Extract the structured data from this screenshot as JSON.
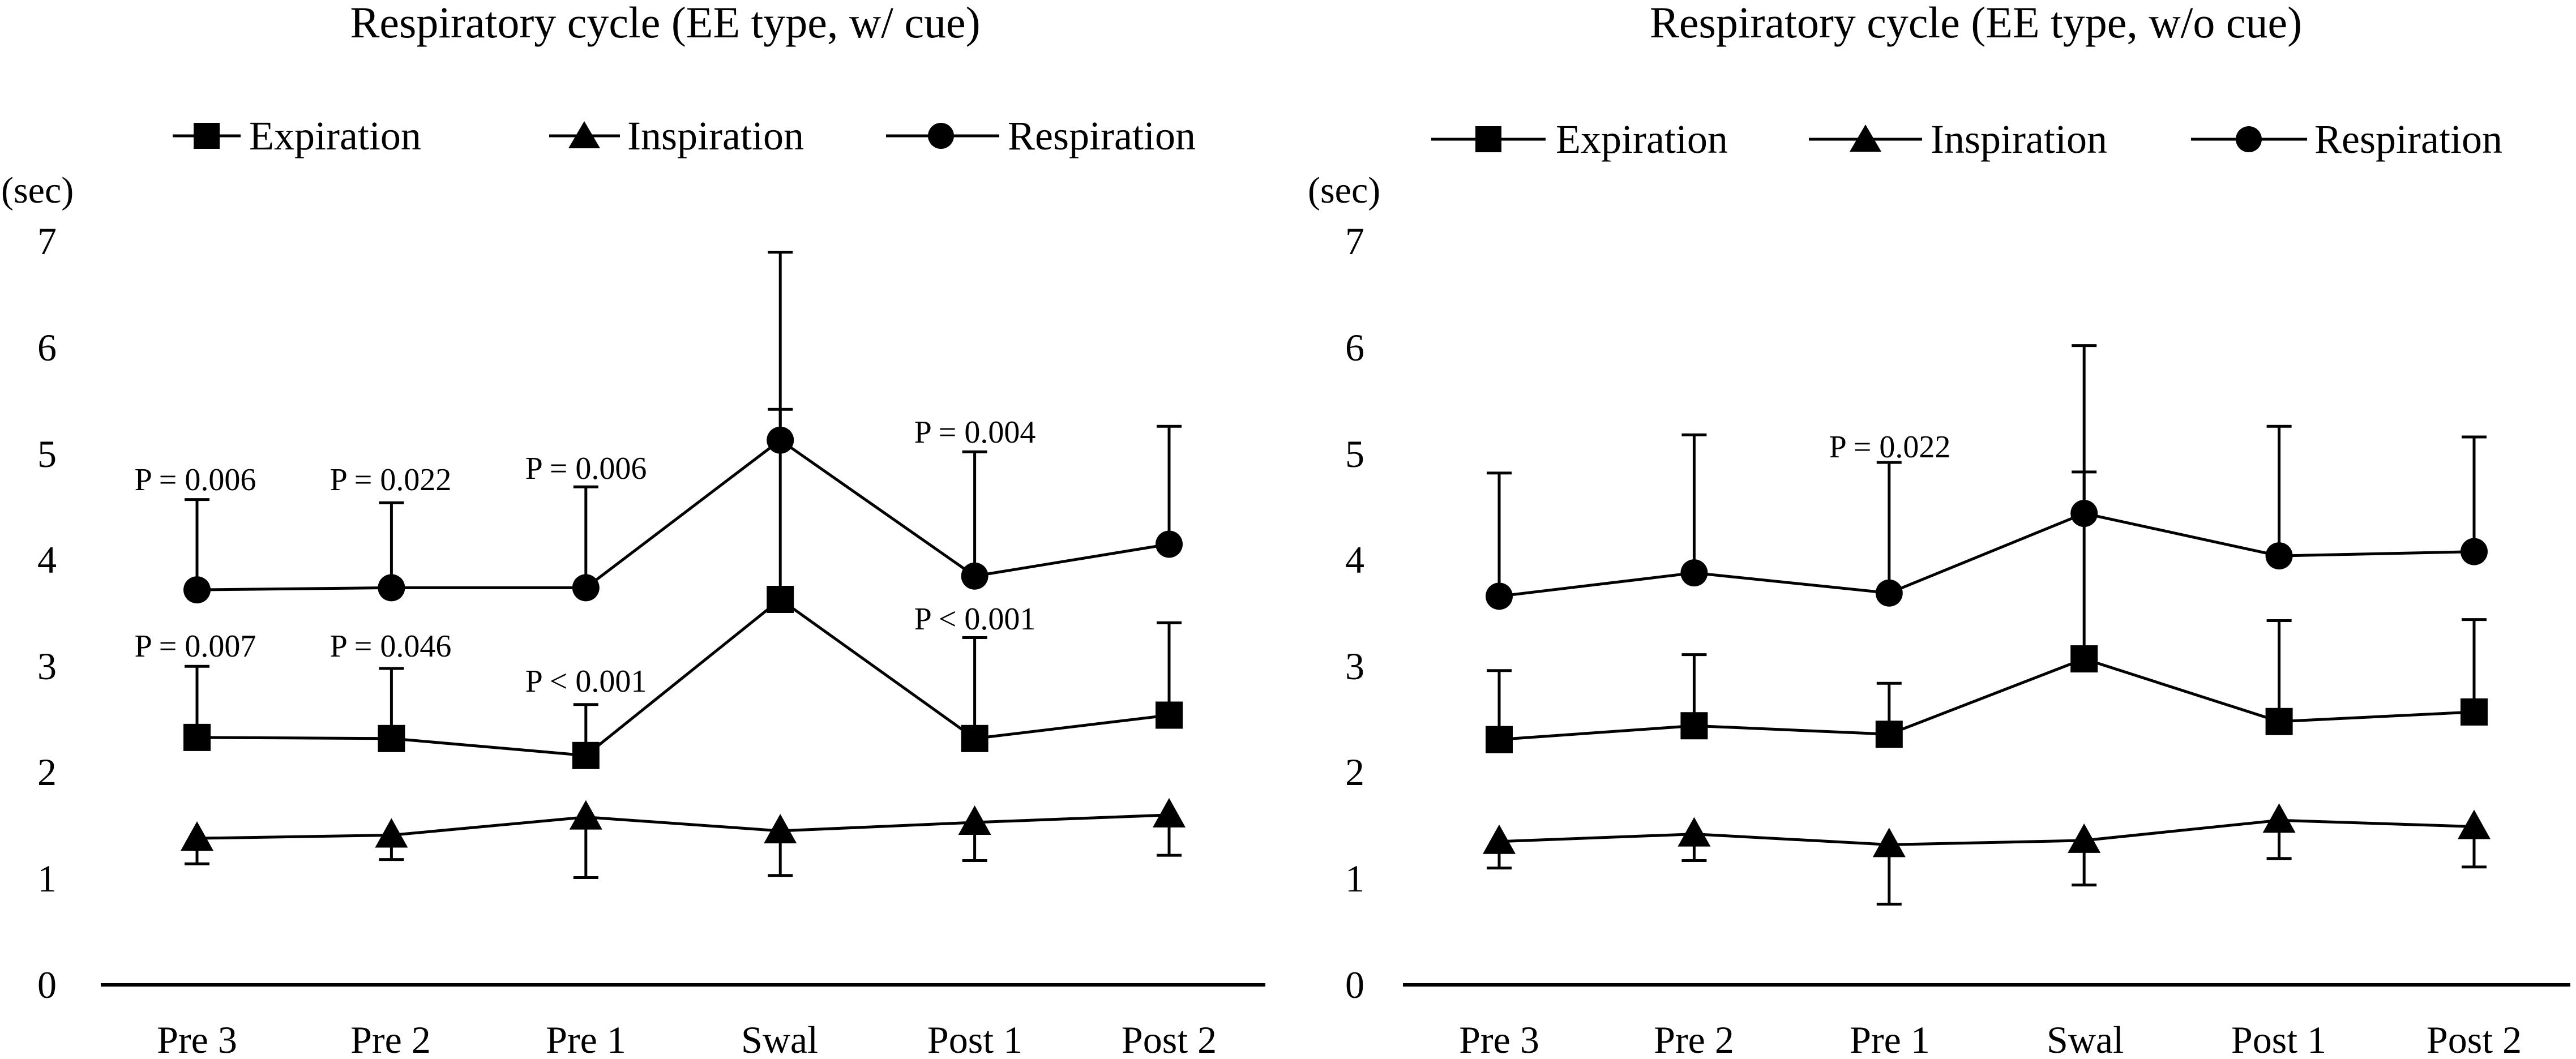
{
  "chart_data": [
    {
      "type": "line",
      "title": "Respiratory cycle (EE type, w/ cue)",
      "ylabel": "(sec)",
      "xlabel": "",
      "ylim": [
        0,
        7
      ],
      "yticks": [
        "0",
        "1",
        "2",
        "3",
        "4",
        "5",
        "6",
        "7"
      ],
      "categories": [
        "Pre 3",
        "Pre 2",
        "Pre 1",
        "Swal",
        "Post 1",
        "Post 2"
      ],
      "series": [
        {
          "name": "Expiration",
          "marker": "square",
          "values": [
            2.33,
            2.32,
            2.16,
            3.63,
            2.32,
            2.54
          ],
          "err_up": [
            3.0,
            2.98,
            2.64,
            5.42,
            3.27,
            3.41
          ],
          "err_down": [
            null,
            null,
            null,
            null,
            null,
            null
          ]
        },
        {
          "name": "Inspiration",
          "marker": "triangle",
          "values": [
            1.38,
            1.41,
            1.58,
            1.45,
            1.53,
            1.6
          ],
          "err_up": [
            null,
            null,
            null,
            null,
            null,
            null
          ],
          "err_down": [
            1.14,
            1.18,
            1.01,
            1.03,
            1.17,
            1.22
          ]
        },
        {
          "name": "Respiration",
          "marker": "circle",
          "values": [
            3.72,
            3.74,
            3.74,
            5.13,
            3.85,
            4.15
          ],
          "err_up": [
            4.57,
            4.54,
            4.69,
            6.9,
            5.02,
            5.26
          ],
          "err_down": [
            null,
            null,
            null,
            null,
            null,
            null
          ]
        }
      ],
      "annotations": [
        {
          "text": "P = 0.006",
          "category": "Pre 3",
          "y": 4.6
        },
        {
          "text": "P = 0.022",
          "category": "Pre 2",
          "y": 4.58
        },
        {
          "text": "P = 0.006",
          "category": "Pre 1",
          "y": 4.72
        },
        {
          "text": "P = 0.004",
          "category": "Post 1",
          "y": 5.05
        },
        {
          "text": "P = 0.007",
          "category": "Pre 3",
          "y": 3.02
        },
        {
          "text": "P = 0.046",
          "category": "Pre 2",
          "y": 3.02
        },
        {
          "text": "P < 0.001",
          "category": "Pre 1",
          "y": 2.67
        },
        {
          "text": "P < 0.001",
          "category": "Post 1",
          "y": 3.29
        }
      ]
    },
    {
      "type": "line",
      "title": "Respiratory cycle (EE type, w/o cue)",
      "ylabel": "(sec)",
      "xlabel": "",
      "ylim": [
        0,
        7
      ],
      "yticks": [
        "0",
        "1",
        "2",
        "3",
        "4",
        "5",
        "6",
        "7"
      ],
      "categories": [
        "Pre 3",
        "Pre 2",
        "Pre 1",
        "Swal",
        "Post 1",
        "Post 2"
      ],
      "series": [
        {
          "name": "Expiration",
          "marker": "square",
          "values": [
            2.31,
            2.44,
            2.36,
            3.07,
            2.48,
            2.57
          ],
          "err_up": [
            2.96,
            3.11,
            2.84,
            4.83,
            3.43,
            3.44
          ],
          "err_down": [
            null,
            null,
            null,
            null,
            null,
            null
          ]
        },
        {
          "name": "Inspiration",
          "marker": "triangle",
          "values": [
            1.35,
            1.42,
            1.32,
            1.36,
            1.55,
            1.49
          ],
          "err_up": [
            null,
            null,
            null,
            null,
            null,
            null
          ],
          "err_down": [
            1.1,
            1.17,
            0.76,
            0.94,
            1.19,
            1.11
          ]
        },
        {
          "name": "Respiration",
          "marker": "circle",
          "values": [
            3.66,
            3.88,
            3.69,
            4.44,
            4.04,
            4.08
          ],
          "err_up": [
            4.82,
            5.18,
            4.92,
            6.02,
            5.26,
            5.16
          ],
          "err_down": [
            null,
            null,
            null,
            null,
            null,
            null
          ]
        }
      ],
      "annotations": [
        {
          "text": "P = 0.022",
          "category": "Pre 1",
          "y": 4.95
        }
      ]
    }
  ]
}
